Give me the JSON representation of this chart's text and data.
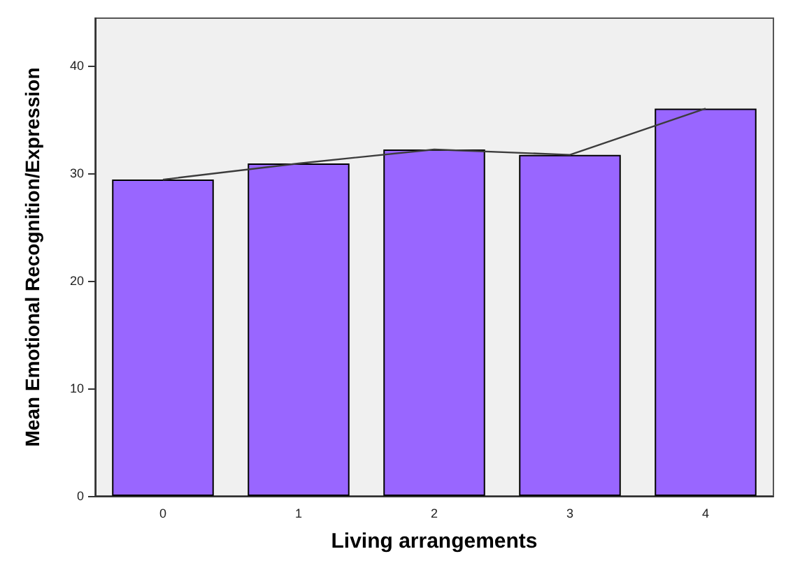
{
  "chart_data": {
    "type": "bar",
    "xlabel": "Living arrangements",
    "ylabel": "Mean Emotional Recognition/Expression",
    "categories": [
      "0",
      "1",
      "2",
      "3",
      "4"
    ],
    "series": [
      {
        "color": "#9966ff",
        "values": [
          29.4,
          30.9,
          32.2,
          31.7,
          36.0
        ]
      },
      {
        "type": "line",
        "color": "#3c3c3c",
        "values": [
          29.4,
          30.9,
          32.2,
          31.7,
          36.0
        ]
      }
    ],
    "ylim": [
      0,
      44.4
    ],
    "yticks": [
      0,
      10,
      20,
      30,
      40
    ],
    "grid": false,
    "marker": "none",
    "line_style": "solid"
  }
}
